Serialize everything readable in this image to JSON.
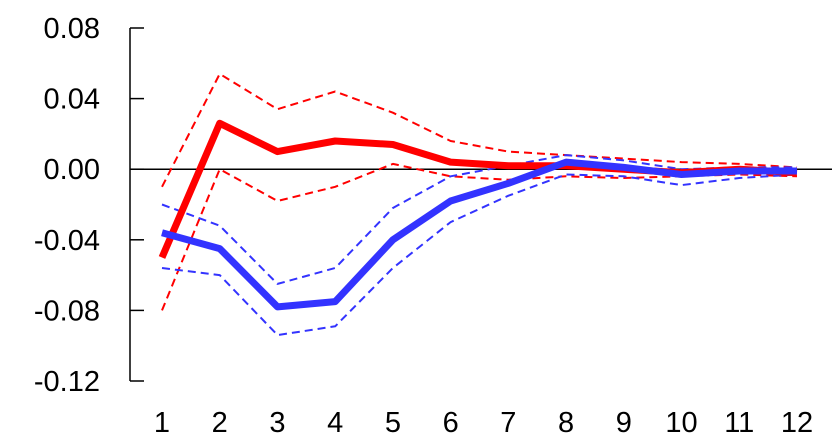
{
  "chart_data": {
    "type": "line",
    "x": [
      1,
      2,
      3,
      4,
      5,
      6,
      7,
      8,
      9,
      10,
      11,
      12
    ],
    "xticklabels": [
      "1",
      "2",
      "3",
      "4",
      "5",
      "6",
      "7",
      "8",
      "9",
      "10",
      "11",
      "12"
    ],
    "yticks": [
      0.08,
      0.04,
      0.0,
      -0.04,
      -0.08,
      -0.12
    ],
    "yticklabels": [
      "0.08",
      "0.04",
      "0.00",
      "-0.04",
      "-0.08",
      "-0.12"
    ],
    "ylim": [
      -0.12,
      0.08
    ],
    "xlim": [
      1,
      12
    ],
    "title": "",
    "xlabel": "",
    "ylabel": "",
    "legend": "none",
    "grid": false,
    "zero_line": true,
    "series": [
      {
        "color": "#ff0000",
        "style": "solid",
        "values": [
          -0.05,
          0.026,
          0.01,
          0.016,
          0.014,
          0.004,
          0.002,
          0.002,
          0.0,
          -0.002,
          0.0,
          -0.002
        ]
      },
      {
        "color": "#ff0000",
        "style": "dashed",
        "values": [
          -0.01,
          0.054,
          0.034,
          0.044,
          0.032,
          0.016,
          0.01,
          0.008,
          0.006,
          0.004,
          0.003,
          0.001
        ]
      },
      {
        "color": "#ff0000",
        "style": "dashed",
        "values": [
          -0.08,
          0.0,
          -0.018,
          -0.01,
          0.003,
          -0.004,
          -0.006,
          -0.004,
          -0.005,
          -0.004,
          -0.003,
          -0.004
        ]
      },
      {
        "color": "#3333ff",
        "style": "solid",
        "values": [
          -0.036,
          -0.045,
          -0.078,
          -0.075,
          -0.04,
          -0.018,
          -0.008,
          0.004,
          0.001,
          -0.003,
          -0.001,
          -0.001
        ]
      },
      {
        "color": "#3333ff",
        "style": "dashed",
        "values": [
          -0.02,
          -0.032,
          -0.065,
          -0.056,
          -0.022,
          -0.004,
          0.002,
          0.008,
          0.005,
          0.0,
          0.001,
          0.001
        ]
      },
      {
        "color": "#3333ff",
        "style": "dashed",
        "values": [
          -0.056,
          -0.06,
          -0.094,
          -0.089,
          -0.056,
          -0.03,
          -0.015,
          -0.003,
          -0.004,
          -0.009,
          -0.005,
          -0.003
        ]
      }
    ]
  }
}
